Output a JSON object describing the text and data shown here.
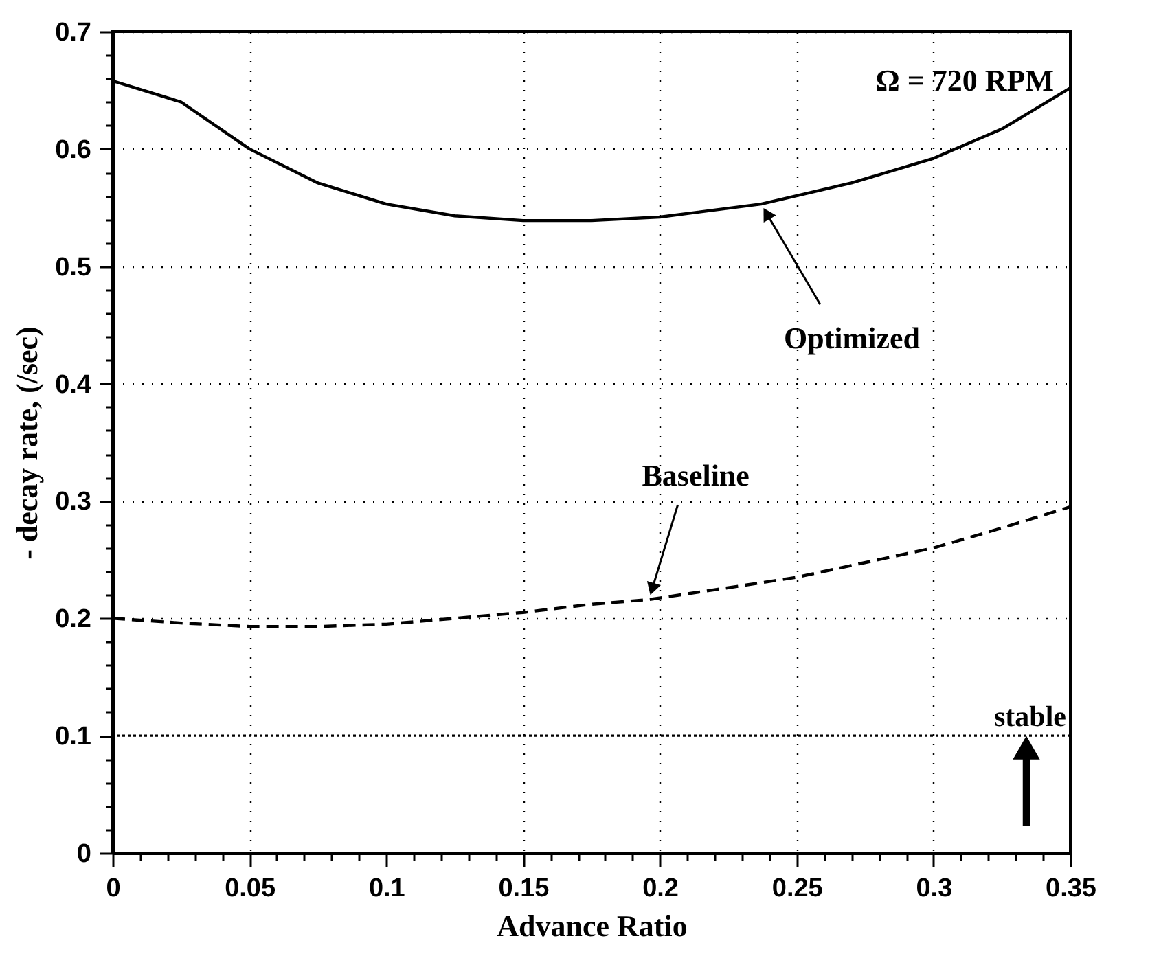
{
  "chart_data": {
    "type": "line",
    "xlabel": "Advance Ratio",
    "ylabel": "- decay rate, (/sec)",
    "xlim": [
      0,
      0.35
    ],
    "ylim": [
      0,
      0.7
    ],
    "xticks": [
      0,
      {
        "value": 0.01,
        "label": null
      },
      {
        "value": 0.02,
        "label": null
      },
      {
        "value": 0.03,
        "label": null
      },
      {
        "value": 0.04,
        "label": null
      },
      0.05,
      {
        "value": 0.06,
        "label": null
      },
      {
        "value": 0.07,
        "label": null
      },
      {
        "value": 0.08,
        "label": null
      },
      {
        "value": 0.09,
        "label": null
      },
      0.1,
      {
        "value": 0.11,
        "label": null
      },
      {
        "value": 0.12,
        "label": null
      },
      {
        "value": 0.13,
        "label": null
      },
      {
        "value": 0.14,
        "label": null
      },
      0.15,
      {
        "value": 0.16,
        "label": null
      },
      {
        "value": 0.17,
        "label": null
      },
      {
        "value": 0.18,
        "label": null
      },
      {
        "value": 0.19,
        "label": null
      },
      0.2,
      {
        "value": 0.21,
        "label": null
      },
      {
        "value": 0.22,
        "label": null
      },
      {
        "value": 0.23,
        "label": null
      },
      {
        "value": 0.24,
        "label": null
      },
      0.25,
      {
        "value": 0.26,
        "label": null
      },
      {
        "value": 0.27,
        "label": null
      },
      {
        "value": 0.28,
        "label": null
      },
      {
        "value": 0.29,
        "label": null
      },
      0.3,
      {
        "value": 0.31,
        "label": null
      },
      {
        "value": 0.32,
        "label": null
      },
      {
        "value": 0.33,
        "label": null
      },
      {
        "value": 0.34,
        "label": null
      },
      0.35
    ],
    "yticks": [
      0,
      {
        "value": 0.02,
        "label": null
      },
      {
        "value": 0.04,
        "label": null
      },
      {
        "value": 0.06,
        "label": null
      },
      {
        "value": 0.08,
        "label": null
      },
      0.1,
      {
        "value": 0.12,
        "label": null
      },
      {
        "value": 0.14,
        "label": null
      },
      {
        "value": 0.16,
        "label": null
      },
      {
        "value": 0.18,
        "label": null
      },
      0.2,
      {
        "value": 0.22,
        "label": null
      },
      {
        "value": 0.24,
        "label": null
      },
      {
        "value": 0.26,
        "label": null
      },
      {
        "value": 0.28,
        "label": null
      },
      0.3,
      {
        "value": 0.32,
        "label": null
      },
      {
        "value": 0.34,
        "label": null
      },
      {
        "value": 0.36,
        "label": null
      },
      {
        "value": 0.38,
        "label": null
      },
      0.4,
      {
        "value": 0.42,
        "label": null
      },
      {
        "value": 0.44,
        "label": null
      },
      {
        "value": 0.46,
        "label": null
      },
      {
        "value": 0.48,
        "label": null
      },
      0.5,
      {
        "value": 0.52,
        "label": null
      },
      {
        "value": 0.54,
        "label": null
      },
      {
        "value": 0.56,
        "label": null
      },
      {
        "value": 0.58,
        "label": null
      },
      0.6,
      {
        "value": 0.62,
        "label": null
      },
      {
        "value": 0.64,
        "label": null
      },
      {
        "value": 0.66,
        "label": null
      },
      {
        "value": 0.68,
        "label": null
      },
      0.7
    ],
    "grid": true,
    "marker": "none",
    "series": [
      {
        "name": "Optimized",
        "color": "#000000",
        "line_style": "solid",
        "x": [
          0,
          0.025,
          0.05,
          0.075,
          0.1,
          0.125,
          0.15,
          0.175,
          0.2,
          0.237,
          0.27,
          0.3,
          0.325,
          0.35
        ],
        "values": [
          0.658,
          0.64,
          0.6,
          0.571,
          0.553,
          0.543,
          0.539,
          0.539,
          0.542,
          0.553,
          0.571,
          0.592,
          0.617,
          0.652
        ]
      },
      {
        "name": "Baseline",
        "color": "#000000",
        "line_style": "dashed",
        "x": [
          0,
          0.025,
          0.05,
          0.075,
          0.1,
          0.125,
          0.15,
          0.175,
          0.196,
          0.222,
          0.25,
          0.27,
          0.3,
          0.325,
          0.35
        ],
        "values": [
          0.2,
          0.196,
          0.193,
          0.193,
          0.195,
          0.2,
          0.205,
          0.212,
          0.216,
          0.225,
          0.235,
          0.245,
          0.26,
          0.277,
          0.295
        ]
      }
    ],
    "ref_lines": [
      {
        "axis": "y",
        "value": 0.1,
        "label": "stable",
        "color": "#000000",
        "line_style": "dotted"
      }
    ],
    "annotations": [
      "Ω = 720 RPM"
    ]
  }
}
